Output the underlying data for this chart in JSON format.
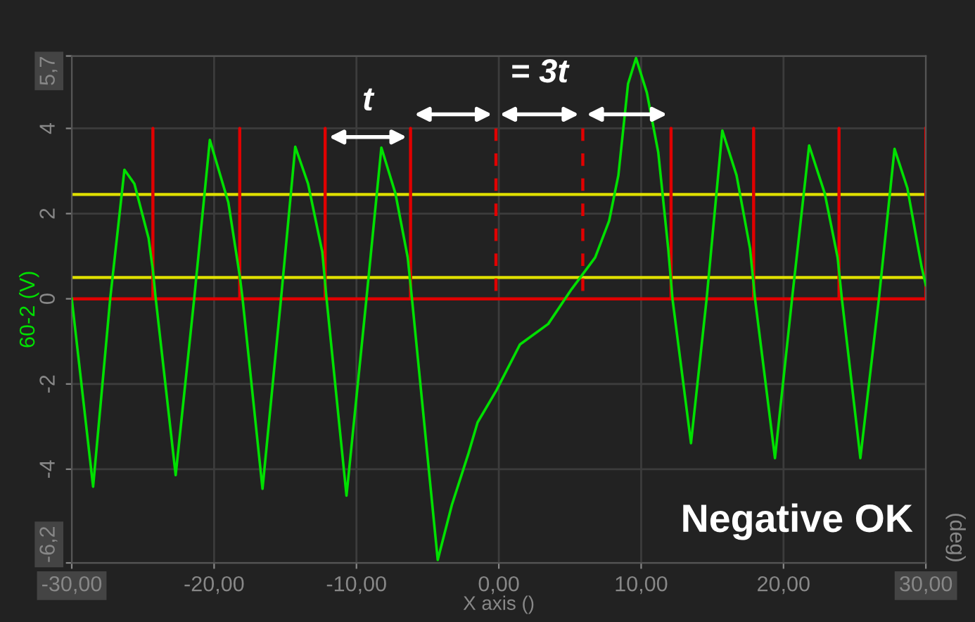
{
  "chart_data": {
    "type": "line",
    "xlabel": "X axis ()",
    "ylabel": "60-2 (V)",
    "xlim": [
      -30,
      30
    ],
    "ylim": [
      -6.2,
      5.7
    ],
    "xticks": [
      {
        "value": -30,
        "label": "-30,00"
      },
      {
        "value": -20,
        "label": "-20,00"
      },
      {
        "value": -10,
        "label": "-10,00"
      },
      {
        "value": 0,
        "label": "0,00"
      },
      {
        "value": 10,
        "label": "10,00"
      },
      {
        "value": 20,
        "label": "20,00"
      },
      {
        "value": 30,
        "label": "30,00"
      }
    ],
    "yticks": [
      {
        "value": -6.2,
        "label": "-6,2"
      },
      -4,
      -2,
      0,
      2,
      4,
      {
        "value": 5.7,
        "label": "5,7"
      }
    ],
    "grid": true,
    "marker": "none",
    "series": [
      {
        "color": "#00e000",
        "line_style": "solid",
        "x": [
          -30,
          -28.5,
          -27.3,
          -26.3,
          -25.6,
          -24.6,
          -24.3,
          -24.1,
          -22.7,
          -21.4,
          -20.3,
          -19.0,
          -18.2,
          -18.0,
          -16.6,
          -15.3,
          -14.3,
          -13.4,
          -12.4,
          -12.1,
          -10.7,
          -9.3,
          -8.25,
          -7.26,
          -6.4,
          -6.1,
          -4.29,
          -3.3,
          -2.15,
          -1.49,
          -0.17,
          1.49,
          3.47,
          5.1,
          6.77,
          7.75,
          8.4,
          9.08,
          9.64,
          10.4,
          11.2,
          11.9,
          12.2,
          13.5,
          14.6,
          15.7,
          16.7,
          17.65,
          18.0,
          19.4,
          20.6,
          21.8,
          22.9,
          23.8,
          24.1,
          25.4,
          26.7,
          27.8,
          28.7,
          29.7,
          30
        ],
        "values": [
          0,
          -4.41,
          0,
          3.03,
          2.7,
          1.42,
          0.67,
          0,
          -4.14,
          0,
          3.73,
          2.26,
          0.54,
          0,
          -4.46,
          0,
          3.57,
          2.7,
          1.1,
          0,
          -4.62,
          0,
          3.55,
          2.47,
          0.97,
          0,
          -6.13,
          -4.84,
          -3.65,
          -2.9,
          -2.15,
          -1.07,
          -0.59,
          0.22,
          0.97,
          1.83,
          2.9,
          5.05,
          5.65,
          4.84,
          3.44,
          1.18,
          0,
          -3.39,
          0,
          3.95,
          2.9,
          1.18,
          0,
          -3.74,
          0,
          3.6,
          2.47,
          0.97,
          0,
          -3.74,
          0,
          3.52,
          2.6,
          0.75,
          0.32
        ]
      },
      {
        "color": "#e00000",
        "line_style": "solid",
        "x": [
          -30,
          -24.3,
          -24.3,
          -24.3,
          -18.2,
          -18.2,
          -18.2,
          -12.2,
          -12.2,
          -12.2,
          -6.2,
          -6.2,
          -6.2,
          12.1,
          12.1,
          12.1,
          17.9,
          17.9,
          17.9,
          23.9,
          23.9,
          23.9,
          30,
          30
        ],
        "values": [
          0,
          0,
          4,
          0,
          0,
          4,
          0,
          0,
          4,
          0,
          0,
          4,
          0,
          0,
          4,
          0,
          0,
          4,
          0,
          0,
          4,
          0,
          0,
          4
        ]
      },
      {
        "color": "#e00000",
        "line_style": "dashed",
        "x": [
          -0.2,
          -0.2
        ],
        "values": [
          4,
          0
        ]
      },
      {
        "color": "#e00000",
        "line_style": "dashed",
        "x": [
          5.9,
          5.9
        ],
        "values": [
          4,
          0
        ]
      }
    ],
    "ref_lines": [
      {
        "axis": "y",
        "value": 2.45,
        "color": "#e0e000"
      },
      {
        "axis": "y",
        "value": 0.5,
        "color": "#e0e000"
      }
    ],
    "annotations": [
      "t",
      "= 3t",
      "Negative OK",
      "(deg)"
    ]
  }
}
